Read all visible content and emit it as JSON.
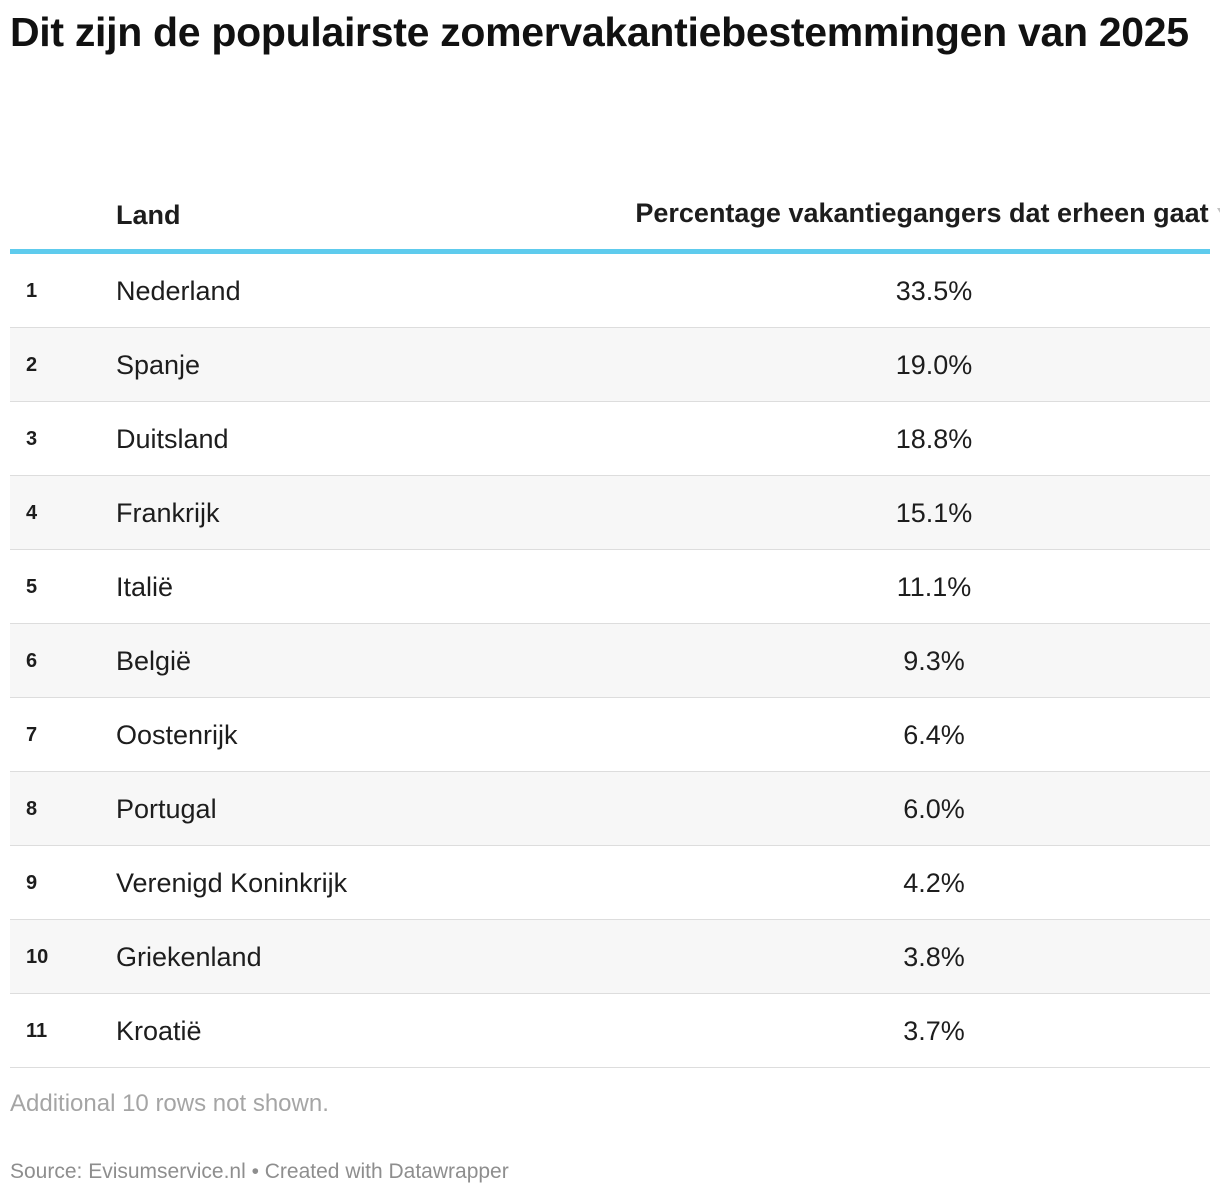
{
  "title": "Dit zijn de populairste zomervakantiebestemmingen van 2025",
  "chart_data": {
    "type": "table",
    "columns": {
      "rank": "",
      "land": "Land",
      "pct": "Percentage vakantiegangers dat erheen gaat"
    },
    "sort": "descending",
    "rows": [
      {
        "rank": "1",
        "land": "Nederland",
        "pct": "33.5%",
        "value": 33.5
      },
      {
        "rank": "2",
        "land": "Spanje",
        "pct": "19.0%",
        "value": 19.0
      },
      {
        "rank": "3",
        "land": "Duitsland",
        "pct": "18.8%",
        "value": 18.8
      },
      {
        "rank": "4",
        "land": "Frankrijk",
        "pct": "15.1%",
        "value": 15.1
      },
      {
        "rank": "5",
        "land": "Italië",
        "pct": "11.1%",
        "value": 11.1
      },
      {
        "rank": "6",
        "land": "België",
        "pct": "9.3%",
        "value": 9.3
      },
      {
        "rank": "7",
        "land": "Oostenrijk",
        "pct": "6.4%",
        "value": 6.4
      },
      {
        "rank": "8",
        "land": "Portugal",
        "pct": "6.0%",
        "value": 6.0
      },
      {
        "rank": "9",
        "land": "Verenigd Koninkrijk",
        "pct": "4.2%",
        "value": 4.2
      },
      {
        "rank": "10",
        "land": "Griekenland",
        "pct": "3.8%",
        "value": 3.8
      },
      {
        "rank": "11",
        "land": "Kroatië",
        "pct": "3.7%",
        "value": 3.7
      }
    ],
    "note": "Additional 10 rows not shown."
  },
  "footer": {
    "source": "Source: Evisumservice.nl • Created with Datawrapper"
  },
  "colors": {
    "header_rule": "#5ecbed",
    "row_alt_bg": "#f7f7f7",
    "sort_icon": "#c2c2c2"
  },
  "icons": {
    "sort": "sort-descending-icon"
  }
}
